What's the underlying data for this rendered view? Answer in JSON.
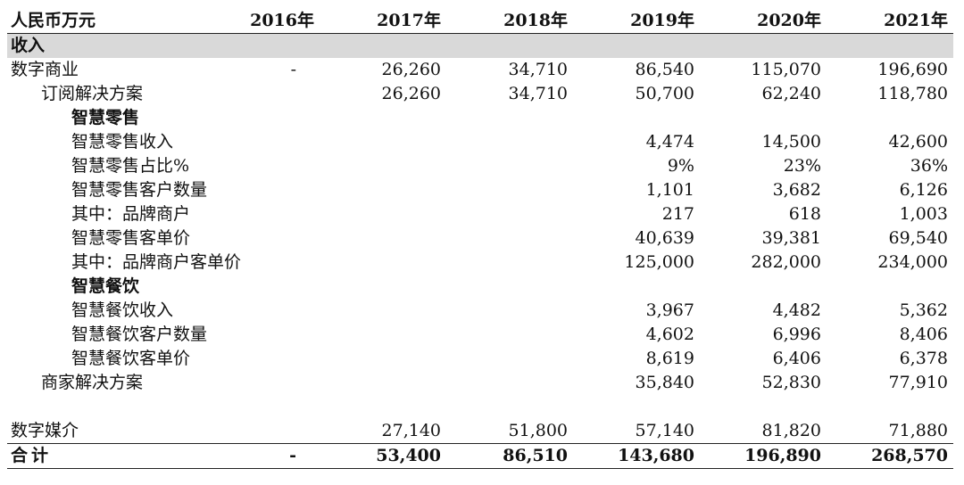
{
  "header": {
    "unit_label": "人民币万元",
    "years": [
      "2016年",
      "2017年",
      "2018年",
      "2019年",
      "2020年",
      "2021年"
    ]
  },
  "section": {
    "label": "收入"
  },
  "rows": {
    "digital_commerce": {
      "label": "数字商业",
      "values": [
        "-",
        "26,260",
        "34,710",
        "86,540",
        "115,070",
        "196,690"
      ]
    },
    "subscription": {
      "label": "订阅解决方案",
      "values": [
        "",
        "26,260",
        "34,710",
        "50,700",
        "62,240",
        "118,780"
      ]
    },
    "smart_retail_heading": {
      "label": "智慧零售"
    },
    "smart_retail_revenue": {
      "label": "智慧零售收入",
      "values": [
        "",
        "",
        "",
        "4,474",
        "14,500",
        "42,600"
      ]
    },
    "smart_retail_share": {
      "label": "智慧零售占比%",
      "values": [
        "",
        "",
        "",
        "9%",
        "23%",
        "36%"
      ]
    },
    "smart_retail_customers": {
      "label": "智慧零售客户数量",
      "values": [
        "",
        "",
        "",
        "1,101",
        "3,682",
        "6,126"
      ]
    },
    "brand_merchants": {
      "label": "其中：品牌商户",
      "values": [
        "",
        "",
        "",
        "217",
        "618",
        "1,003"
      ]
    },
    "smart_retail_arpu": {
      "label": "智慧零售客单价",
      "values": [
        "",
        "",
        "",
        "40,639",
        "39,381",
        "69,540"
      ]
    },
    "brand_merchants_arpu": {
      "label": "其中：品牌商户客单价",
      "values": [
        "",
        "",
        "",
        "125,000",
        "282,000",
        "234,000"
      ]
    },
    "smart_dining_heading": {
      "label": "智慧餐饮"
    },
    "smart_dining_revenue": {
      "label": "智慧餐饮收入",
      "values": [
        "",
        "",
        "",
        "3,967",
        "4,482",
        "5,362"
      ]
    },
    "smart_dining_customers": {
      "label": "智慧餐饮客户数量",
      "values": [
        "",
        "",
        "",
        "4,602",
        "6,996",
        "8,406"
      ]
    },
    "smart_dining_arpu": {
      "label": "智慧餐饮客单价",
      "values": [
        "",
        "",
        "",
        "8,619",
        "6,406",
        "6,378"
      ]
    },
    "merchant_solutions": {
      "label": "商家解决方案",
      "values": [
        "",
        "",
        "",
        "35,840",
        "52,830",
        "77,910"
      ]
    },
    "digital_media": {
      "label": "数字媒介",
      "values": [
        "",
        "27,140",
        "51,800",
        "57,140",
        "81,820",
        "71,880"
      ]
    },
    "total": {
      "label": "合计",
      "values": [
        "-",
        "53,400",
        "86,510",
        "143,680",
        "196,890",
        "268,570"
      ]
    }
  }
}
